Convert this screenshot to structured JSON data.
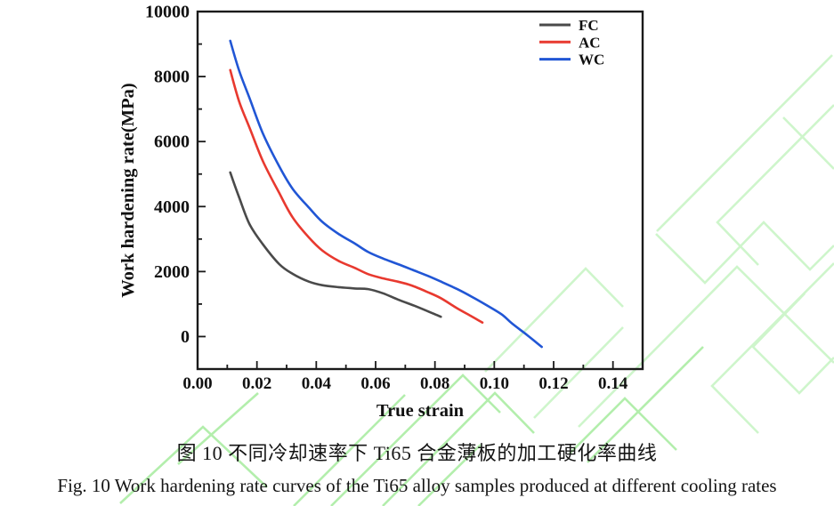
{
  "figure": {
    "caption_zh": "图 10  不同冷却速率下 Ti65 合金薄板的加工硬化率曲线",
    "caption_en": "Fig. 10 Work hardening rate curves of the Ti65 alloy samples produced at different cooling rates"
  },
  "colors": {
    "axis": "#1a1a1a",
    "tick_text": "#111111",
    "watermark_light": "#c9f4c6",
    "watermark_strong": "#abeda4",
    "fc_gray": "#4a4a4a",
    "ac_red": "#e8392f",
    "wc_blue": "#2156d5"
  },
  "chart_data": {
    "type": "line",
    "title": "",
    "xlabel": "True strain",
    "ylabel": "Work hardening rate(MPa)",
    "xlim": [
      0,
      0.15
    ],
    "ylim": [
      -1000,
      10000
    ],
    "x_major_step": 0.02,
    "x_minor_step": 0.01,
    "y_major_step": 2000,
    "y_minor_step": 1000,
    "grid": false,
    "legend_position": "top-right",
    "x_tick_labels": [
      "0.00",
      "0.02",
      "0.04",
      "0.06",
      "0.08",
      "0.10",
      "0.12",
      "0.14"
    ],
    "y_tick_labels": [
      "0",
      "2000",
      "4000",
      "6000",
      "8000",
      "10000"
    ],
    "series": [
      {
        "name": "FC",
        "color": "#4a4a4a",
        "points": [
          [
            0.011,
            5050
          ],
          [
            0.014,
            4280
          ],
          [
            0.0175,
            3460
          ],
          [
            0.022,
            2840
          ],
          [
            0.0275,
            2230
          ],
          [
            0.032,
            1930
          ],
          [
            0.0375,
            1690
          ],
          [
            0.042,
            1580
          ],
          [
            0.0475,
            1520
          ],
          [
            0.053,
            1480
          ],
          [
            0.0575,
            1460
          ],
          [
            0.0625,
            1330
          ],
          [
            0.0675,
            1140
          ],
          [
            0.073,
            950
          ],
          [
            0.077,
            800
          ],
          [
            0.082,
            610
          ]
        ]
      },
      {
        "name": "AC",
        "color": "#e8392f",
        "points": [
          [
            0.011,
            8200
          ],
          [
            0.014,
            7230
          ],
          [
            0.0175,
            6430
          ],
          [
            0.022,
            5400
          ],
          [
            0.0275,
            4420
          ],
          [
            0.032,
            3670
          ],
          [
            0.0375,
            3050
          ],
          [
            0.042,
            2650
          ],
          [
            0.0475,
            2330
          ],
          [
            0.053,
            2110
          ],
          [
            0.0575,
            1920
          ],
          [
            0.0625,
            1790
          ],
          [
            0.0675,
            1690
          ],
          [
            0.072,
            1575
          ],
          [
            0.0775,
            1370
          ],
          [
            0.082,
            1180
          ],
          [
            0.0875,
            870
          ],
          [
            0.092,
            640
          ],
          [
            0.096,
            430
          ]
        ]
      },
      {
        "name": "WC",
        "color": "#2156d5",
        "points": [
          [
            0.011,
            9100
          ],
          [
            0.014,
            8180
          ],
          [
            0.0175,
            7340
          ],
          [
            0.022,
            6250
          ],
          [
            0.0275,
            5240
          ],
          [
            0.032,
            4550
          ],
          [
            0.0375,
            3970
          ],
          [
            0.042,
            3530
          ],
          [
            0.0475,
            3160
          ],
          [
            0.053,
            2860
          ],
          [
            0.0575,
            2600
          ],
          [
            0.0625,
            2400
          ],
          [
            0.0675,
            2230
          ],
          [
            0.0725,
            2050
          ],
          [
            0.0775,
            1870
          ],
          [
            0.0825,
            1670
          ],
          [
            0.0875,
            1460
          ],
          [
            0.0925,
            1220
          ],
          [
            0.0975,
            960
          ],
          [
            0.1025,
            680
          ],
          [
            0.106,
            400
          ],
          [
            0.111,
            50
          ],
          [
            0.116,
            -320
          ]
        ]
      }
    ]
  }
}
